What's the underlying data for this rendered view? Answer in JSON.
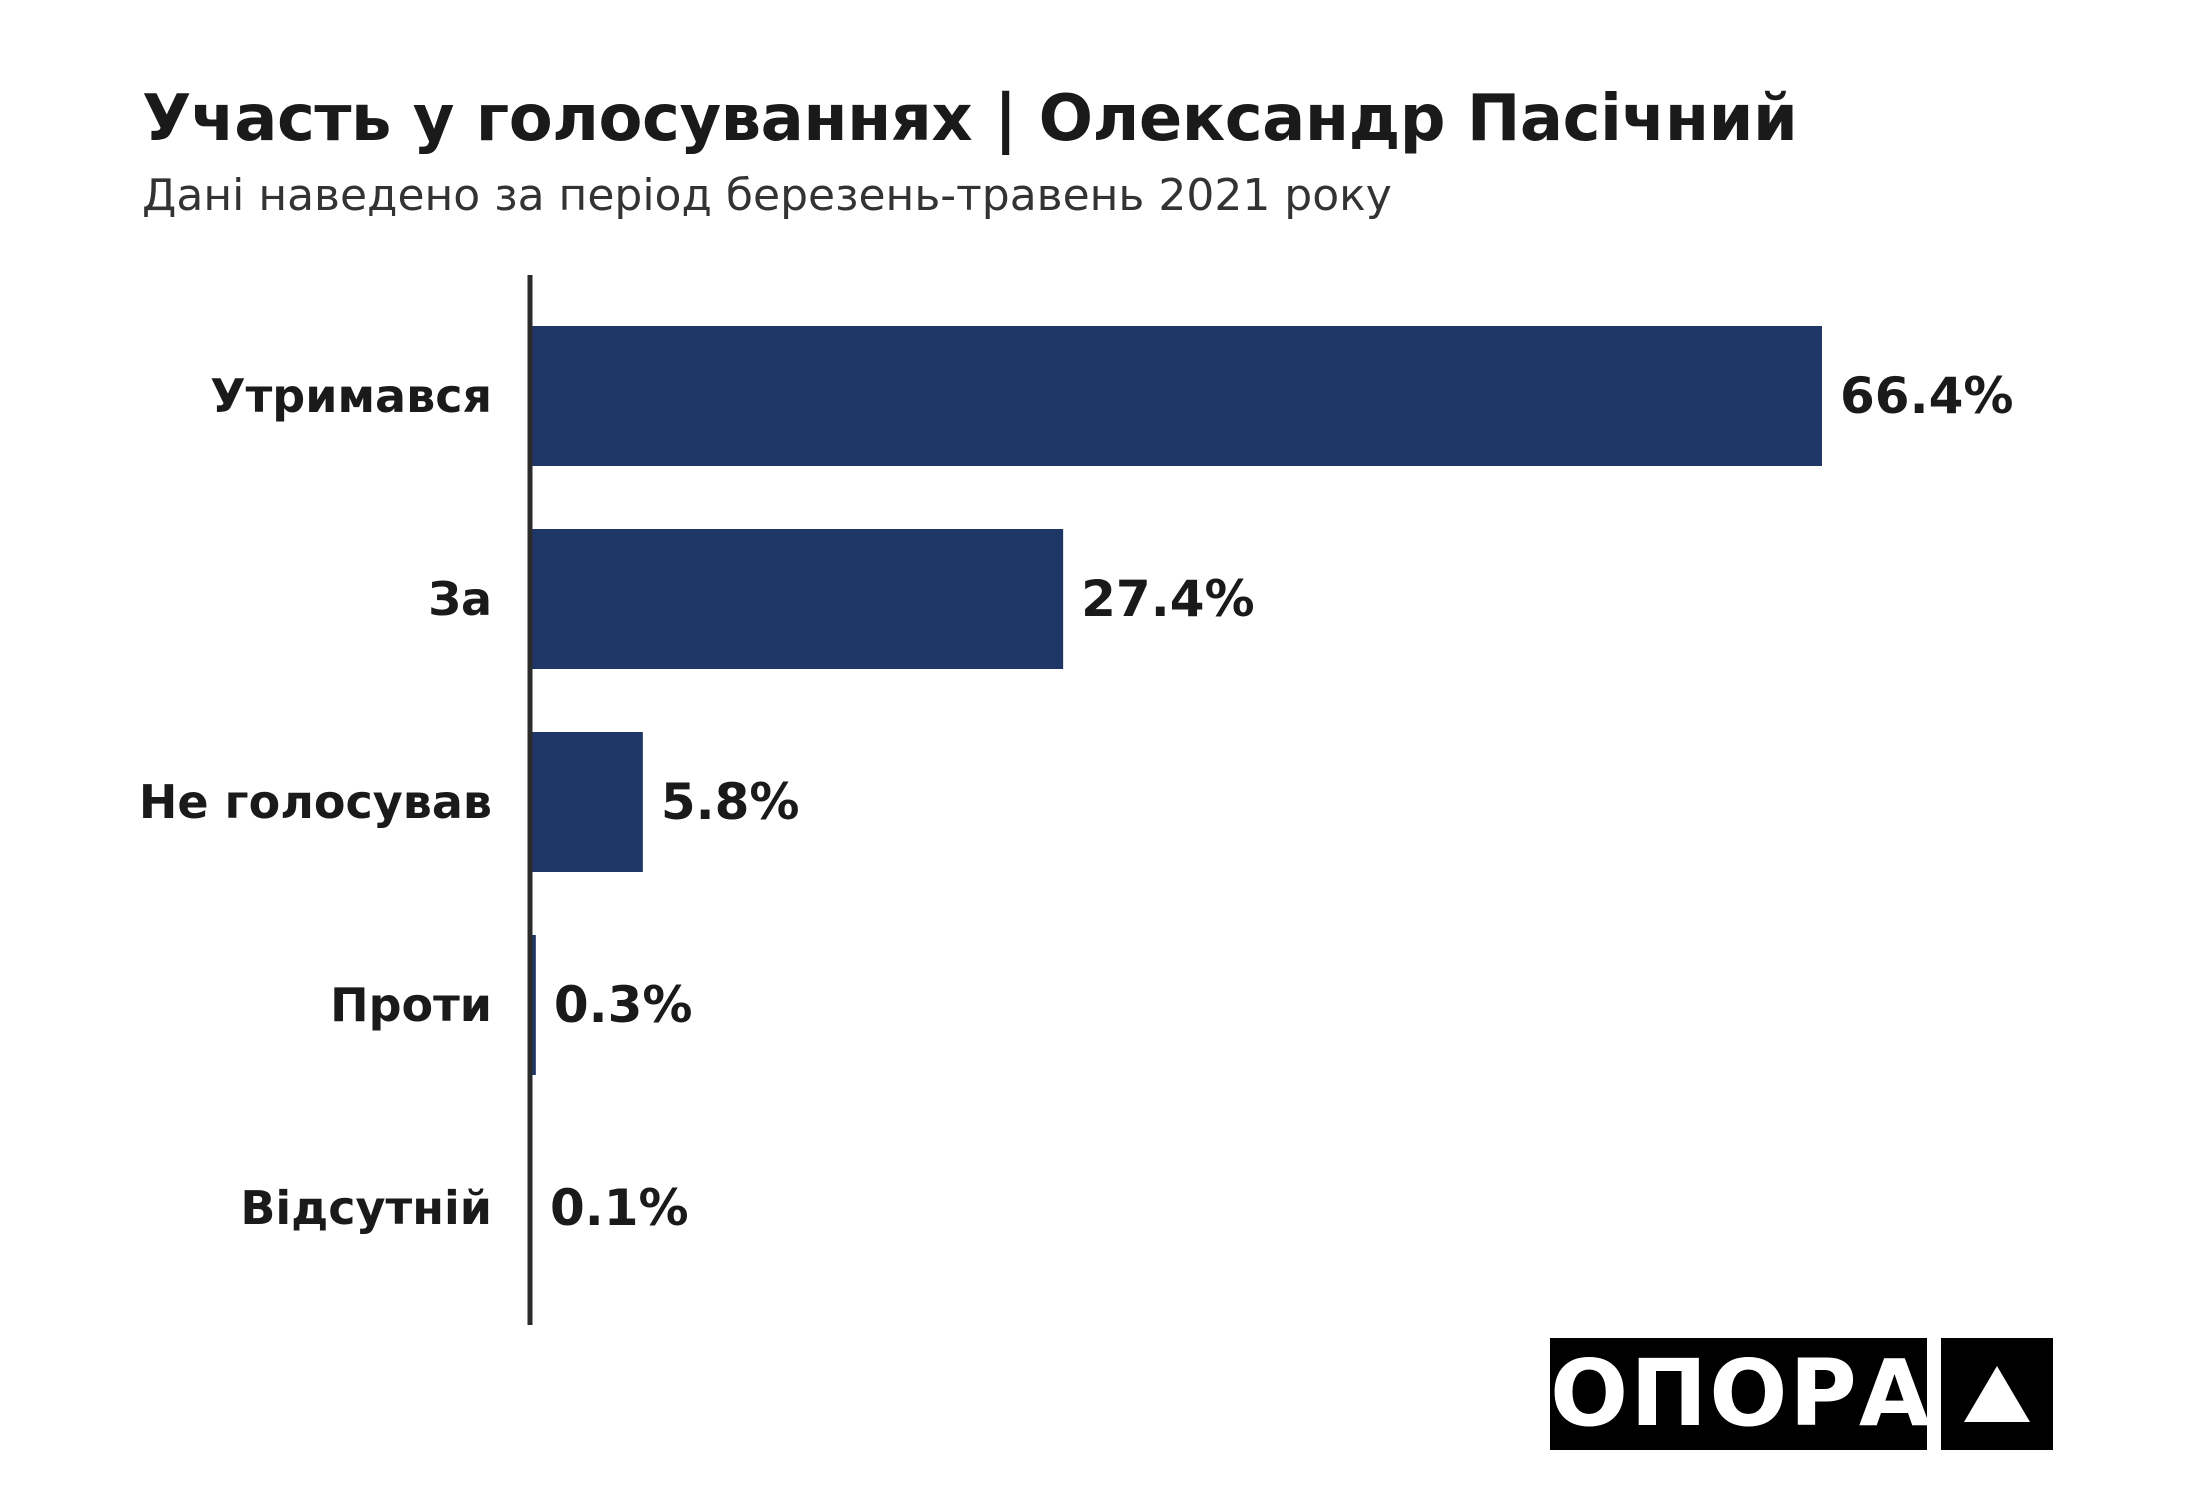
{
  "header": {
    "title": "Участь у голосуваннях | Олександр Пасічний",
    "subtitle": "Дані наведено за період березень-травень 2021 року"
  },
  "logo": {
    "text": "ОПОРА",
    "icon": "triangle-icon"
  },
  "colors": {
    "bar": "#1f3766",
    "axis": "#2b2b2b",
    "text": "#1a1a1a"
  },
  "chart_data": {
    "type": "bar",
    "orientation": "horizontal",
    "title": "Участь у голосуваннях | Олександр Пасічний",
    "subtitle": "Дані наведено за період березень-травень 2021 року",
    "categories": [
      "Утримався",
      "За",
      "Не голосував",
      "Проти",
      "Відсутній"
    ],
    "values": [
      66.4,
      27.4,
      5.8,
      0.3,
      0.1
    ],
    "value_labels": [
      "66.4%",
      "27.4%",
      "5.8%",
      "0.3%",
      "0.1%"
    ],
    "xlim": [
      0,
      66.4
    ],
    "grid": false,
    "legend": "none"
  }
}
